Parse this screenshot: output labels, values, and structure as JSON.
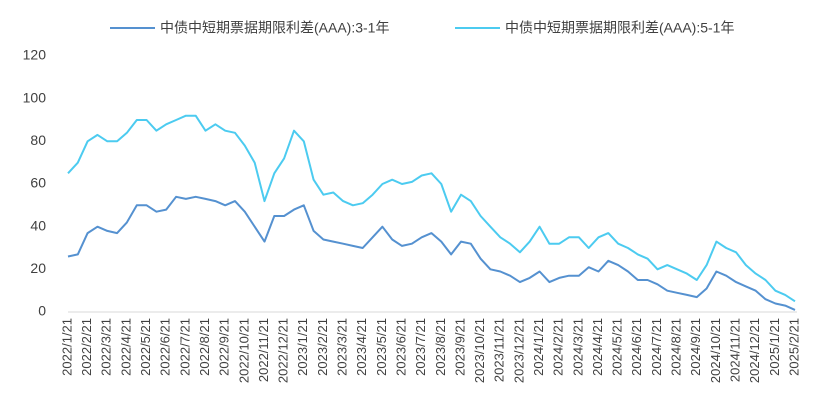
{
  "chart_data": {
    "type": "line",
    "categories": [
      "2022/1/21",
      null,
      "2022/2/21",
      null,
      "2022/3/21",
      null,
      "2022/4/21",
      null,
      "2022/5/21",
      null,
      "2022/6/21",
      null,
      "2022/7/21",
      null,
      "2022/8/21",
      null,
      "2022/9/21",
      null,
      "2022/10/21",
      null,
      "2022/11/21",
      null,
      "2022/12/21",
      null,
      "2023/1/21",
      null,
      "2023/2/21",
      null,
      "2023/3/21",
      null,
      "2023/4/21",
      null,
      "2023/5/21",
      null,
      "2023/6/21",
      null,
      "2023/7/21",
      null,
      "2023/8/21",
      null,
      "2023/9/21",
      null,
      "2023/10/21",
      null,
      "2023/11/21",
      null,
      "2023/12/21",
      null,
      "2024/1/21",
      null,
      "2024/2/21",
      null,
      "2024/3/21",
      null,
      "2024/4/21",
      null,
      "2024/5/21",
      null,
      "2024/6/21",
      null,
      "2024/7/21",
      null,
      "2024/8/21",
      null,
      "2024/9/21",
      null,
      "2024/10/21",
      null,
      "2024/11/21",
      null,
      "2024/12/21",
      null,
      "2025/1/21",
      null,
      "2025/2/21"
    ],
    "series": [
      {
        "name": "中债中短期票据期限利差(AAA):3-1年",
        "color": "#5591d0",
        "values": [
          26,
          27,
          37,
          40,
          38,
          37,
          42,
          50,
          50,
          47,
          48,
          54,
          53,
          54,
          53,
          52,
          50,
          52,
          47,
          40,
          33,
          45,
          45,
          48,
          50,
          38,
          34,
          33,
          32,
          31,
          30,
          35,
          40,
          34,
          31,
          32,
          35,
          37,
          33,
          27,
          33,
          32,
          25,
          20,
          19,
          17,
          14,
          16,
          19,
          14,
          16,
          17,
          17,
          21,
          19,
          24,
          22,
          19,
          15,
          15,
          13,
          10,
          9,
          8,
          7,
          11,
          19,
          17,
          14,
          12,
          10,
          6,
          4,
          3,
          1
        ]
      },
      {
        "name": "中债中短期票据期限利差(AAA):5-1年",
        "color": "#4ccbf0",
        "values": [
          65,
          70,
          80,
          83,
          80,
          80,
          84,
          90,
          90,
          85,
          88,
          90,
          92,
          92,
          85,
          88,
          85,
          84,
          78,
          70,
          52,
          65,
          72,
          85,
          80,
          62,
          55,
          56,
          52,
          50,
          51,
          55,
          60,
          62,
          60,
          61,
          64,
          65,
          60,
          47,
          55,
          52,
          45,
          40,
          35,
          32,
          28,
          33,
          40,
          32,
          32,
          35,
          35,
          30,
          35,
          37,
          32,
          30,
          27,
          25,
          20,
          22,
          20,
          18,
          15,
          22,
          33,
          30,
          28,
          22,
          18,
          15,
          10,
          8,
          5
        ]
      }
    ],
    "ylim": [
      0,
      120
    ],
    "yticks": [
      0,
      20,
      40,
      60,
      80,
      100,
      120
    ],
    "grid": false
  }
}
